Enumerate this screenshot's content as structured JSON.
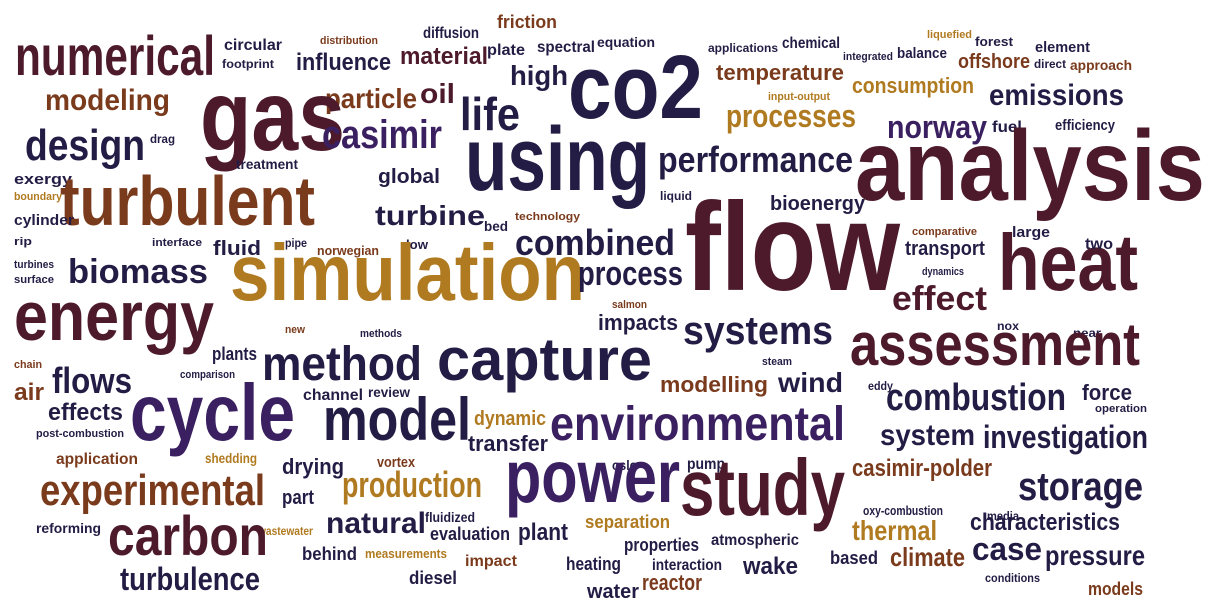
{
  "words": [
    "numerical",
    "circular",
    "footprint",
    "distribution",
    "diffusion",
    "friction",
    "plate",
    "spectral",
    "equation",
    "co2",
    "applications",
    "chemical",
    "integrated",
    "balance",
    "liquefied",
    "forest",
    "element",
    "offshore",
    "direct",
    "approach",
    "temperature",
    "input-output",
    "consumption",
    "emissions",
    "efficiency",
    "fuel",
    "norway",
    "processes",
    "performance",
    "analysis",
    "influence",
    "material",
    "high",
    "oil",
    "particle",
    "life",
    "gas",
    "casimir",
    "using",
    "modeling",
    "design",
    "drag",
    "exergy",
    "turbulent",
    "treatment",
    "global",
    "boundary",
    "cylinder",
    "technology",
    "liquid",
    "bioenergy",
    "turbine",
    "bed",
    "combined",
    "flow",
    "comparative",
    "large",
    "transport",
    "heat",
    "two",
    "rip",
    "interface",
    "pipe",
    "norwegian",
    "low",
    "fluid",
    "turbines",
    "surface",
    "biomass",
    "simulation",
    "process",
    "dynamics",
    "effect",
    "energy",
    "salmon",
    "impacts",
    "systems",
    "nox",
    "near",
    "assessment",
    "new",
    "methods",
    "method",
    "capture",
    "plants",
    "chain",
    "comparison",
    "steam",
    "flows",
    "air",
    "cycle",
    "modelling",
    "wind",
    "eddy",
    "combustion",
    "force",
    "channel",
    "review",
    "effects",
    "model",
    "environmental",
    "dynamic",
    "operation",
    "post-combustion",
    "system",
    "investigation",
    "transfer",
    "application",
    "shedding",
    "drying",
    "vortex",
    "oslo",
    "pump",
    "casimir-polder",
    "experimental",
    "power",
    "study",
    "production",
    "part",
    "storage",
    "fluidized",
    "oxy-combustion",
    "media",
    "natural",
    "evaluation",
    "plant",
    "separation",
    "thermal",
    "characteristics",
    "reforming",
    "wastewater",
    "carbon",
    "atmospheric",
    "properties",
    "behind",
    "measurements",
    "impact",
    "heating",
    "interaction",
    "based",
    "climate",
    "case",
    "pressure",
    "wake",
    "turbulence",
    "diesel",
    "reactor",
    "conditions",
    "models",
    "water"
  ]
}
